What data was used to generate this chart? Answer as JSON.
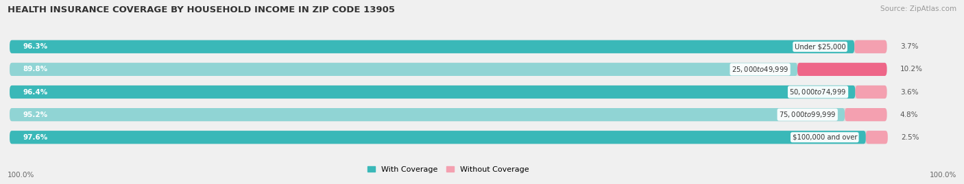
{
  "title": "HEALTH INSURANCE COVERAGE BY HOUSEHOLD INCOME IN ZIP CODE 13905",
  "source": "Source: ZipAtlas.com",
  "categories": [
    "Under $25,000",
    "$25,000 to $49,999",
    "$50,000 to $74,999",
    "$75,000 to $99,999",
    "$100,000 and over"
  ],
  "with_coverage": [
    96.3,
    89.8,
    96.4,
    95.2,
    97.6
  ],
  "without_coverage": [
    3.7,
    10.2,
    3.6,
    4.8,
    2.5
  ],
  "color_with_dark": "#3ab8b8",
  "color_with_light": "#90d4d4",
  "color_without_light": "#f4a0b0",
  "color_without_dark": "#ee6688",
  "bar_height": 0.58,
  "background_color": "#f0f0f0",
  "bar_bg_color": "#dcdcdc",
  "legend_with": "With Coverage",
  "legend_without": "Without Coverage",
  "left_label": "100.0%",
  "right_label": "100.0%",
  "title_fontsize": 9.5,
  "source_fontsize": 7.5,
  "bar_label_fontsize": 7.5,
  "cat_label_fontsize": 7.2,
  "pct_after_fontsize": 7.5
}
